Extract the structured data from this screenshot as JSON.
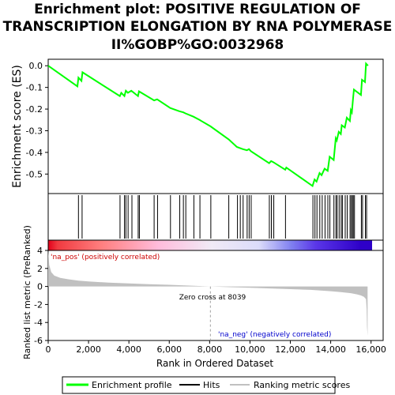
{
  "title_lines": [
    "Enrichment plot: POSITIVE REGULATION OF",
    "TRANSCRIPTION ELONGATION BY RNA POLYMERASE",
    "II%GOBP%GO:0032968"
  ],
  "chart_data": {
    "type": "line",
    "x_label": "Rank in Ordered Dataset",
    "es_y_label": "Enrichment score (ES)",
    "metric_y_label": "Ranked list metric (PreRanked)",
    "x_range": [
      0,
      16600
    ],
    "x_ticks": [
      0,
      2000,
      4000,
      6000,
      8000,
      10000,
      12000,
      14000,
      16000
    ],
    "x_tick_labels": [
      "0",
      "2,000",
      "4,000",
      "6,000",
      "8,000",
      "10,000",
      "12,000",
      "14,000",
      "16,000"
    ],
    "es_y_range": [
      -0.59,
      0.03
    ],
    "es_y_ticks": [
      0.0,
      -0.1,
      -0.2,
      -0.3,
      -0.4,
      -0.5
    ],
    "es_y_tick_labels": [
      "0.0",
      "-0.1",
      "-0.2",
      "-0.3",
      "-0.4",
      "-0.5"
    ],
    "metric_y_range": [
      -6,
      4
    ],
    "metric_y_ticks": [
      4,
      2,
      0,
      -2,
      -4,
      -6
    ],
    "metric_y_tick_labels": [
      "4",
      "2",
      "0",
      "-2",
      "-4",
      "-6"
    ],
    "grid": false,
    "enrichment_profile": {
      "name": "Enrichment profile",
      "color": "#00ff00",
      "x": [
        0,
        1450,
        1500,
        1650,
        1700,
        3550,
        3620,
        3780,
        3850,
        3950,
        4120,
        4450,
        4500,
        5250,
        5400,
        6050,
        6500,
        6700,
        6800,
        7200,
        7500,
        8050,
        8950,
        9350,
        9500,
        9650,
        9850,
        9950,
        10050,
        10950,
        11050,
        11150,
        11750,
        11800,
        13100,
        13200,
        13300,
        13450,
        13550,
        13700,
        13850,
        13950,
        14150,
        14250,
        14300,
        14400,
        14500,
        14550,
        14700,
        14800,
        14950,
        15000,
        15050,
        15100,
        15150,
        15500,
        15550,
        15700,
        15750,
        15850
      ],
      "y": [
        0.0,
        -0.095,
        -0.055,
        -0.07,
        -0.03,
        -0.14,
        -0.125,
        -0.14,
        -0.115,
        -0.125,
        -0.115,
        -0.14,
        -0.118,
        -0.16,
        -0.155,
        -0.195,
        -0.21,
        -0.215,
        -0.22,
        -0.235,
        -0.25,
        -0.28,
        -0.34,
        -0.375,
        -0.38,
        -0.385,
        -0.39,
        -0.385,
        -0.395,
        -0.45,
        -0.44,
        -0.445,
        -0.48,
        -0.47,
        -0.555,
        -0.525,
        -0.535,
        -0.495,
        -0.505,
        -0.475,
        -0.485,
        -0.42,
        -0.435,
        -0.335,
        -0.345,
        -0.305,
        -0.315,
        -0.275,
        -0.285,
        -0.24,
        -0.255,
        -0.205,
        -0.215,
        -0.16,
        -0.11,
        -0.135,
        -0.065,
        -0.075,
        0.01,
        0.0
      ]
    },
    "hits": [
      1500,
      1680,
      3560,
      3780,
      3850,
      3960,
      4150,
      4460,
      4520,
      5250,
      5420,
      6060,
      6520,
      6700,
      6820,
      7220,
      7520,
      8060,
      8950,
      9380,
      9520,
      9660,
      9860,
      9960,
      10060,
      10960,
      11060,
      11180,
      11760,
      13120,
      13220,
      13320,
      13460,
      13580,
      13720,
      13860,
      13960,
      14160,
      14260,
      14320,
      14420,
      14520,
      14580,
      14720,
      14820,
      14960,
      15020,
      15080,
      15120,
      15180,
      15520,
      15580,
      15720,
      15780
    ],
    "ranking_metric": {
      "name": "Ranking metric scores",
      "color": "#c0c0c0",
      "x": [
        0,
        50,
        150,
        300,
        600,
        1000,
        1500,
        2000,
        3000,
        4000,
        5000,
        6000,
        7000,
        8039,
        9000,
        10000,
        11000,
        12000,
        13000,
        13500,
        14000,
        14500,
        15000,
        15300,
        15500,
        15650,
        15750,
        15780,
        15800,
        15830
      ],
      "y": [
        4.0,
        2.4,
        1.6,
        1.2,
        0.95,
        0.8,
        0.65,
        0.55,
        0.42,
        0.33,
        0.25,
        0.18,
        0.1,
        0.0,
        -0.08,
        -0.15,
        -0.22,
        -0.3,
        -0.38,
        -0.45,
        -0.53,
        -0.62,
        -0.75,
        -0.88,
        -1.0,
        -1.15,
        -1.4,
        -2.5,
        -4.5,
        -5.5
      ]
    },
    "zero_cross_label": "Zero cross at 8039",
    "zero_cross_x": 8039,
    "pos_label": "'na_pos' (positively correlated)",
    "neg_label": "'na_neg' (negatively correlated)",
    "legend": {
      "placement": "bottom",
      "items": [
        {
          "label": "Enrichment profile",
          "color": "#00ff00"
        },
        {
          "label": "Hits",
          "color": "#000000"
        },
        {
          "label": "Ranking metric scores",
          "color": "#c0c0c0"
        }
      ]
    },
    "heatmap_stops": [
      {
        "x": 0,
        "color": "#e2001a"
      },
      {
        "x": 450,
        "color": "#f03a40"
      },
      {
        "x": 2600,
        "color": "#ff7f7f"
      },
      {
        "x": 5400,
        "color": "#ffbcdc"
      },
      {
        "x": 8000,
        "color": "#f0eaf6"
      },
      {
        "x": 10300,
        "color": "#dcdcfa"
      },
      {
        "x": 11900,
        "color": "#8080f0"
      },
      {
        "x": 13100,
        "color": "#5a36e8"
      },
      {
        "x": 15300,
        "color": "#2e00c8"
      },
      {
        "x": 15850,
        "color": "#2e00c8"
      }
    ]
  }
}
